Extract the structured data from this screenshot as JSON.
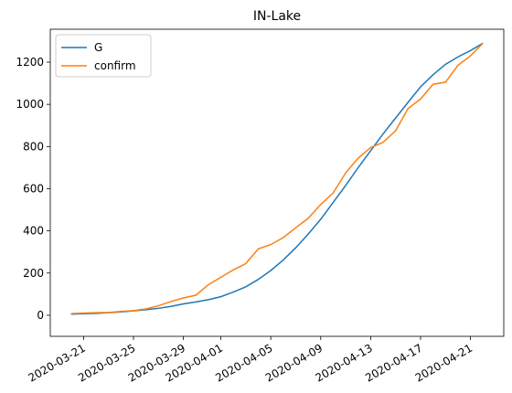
{
  "chart_data": {
    "type": "line",
    "title": "IN-Lake",
    "x": [
      "2020-03-20",
      "2020-03-21",
      "2020-03-22",
      "2020-03-23",
      "2020-03-24",
      "2020-03-25",
      "2020-03-26",
      "2020-03-27",
      "2020-03-28",
      "2020-03-29",
      "2020-03-30",
      "2020-03-31",
      "2020-04-01",
      "2020-04-02",
      "2020-04-03",
      "2020-04-04",
      "2020-04-05",
      "2020-04-06",
      "2020-04-07",
      "2020-04-08",
      "2020-04-09",
      "2020-04-10",
      "2020-04-11",
      "2020-04-12",
      "2020-04-13",
      "2020-04-14",
      "2020-04-15",
      "2020-04-16",
      "2020-04-17",
      "2020-04-18",
      "2020-04-19",
      "2020-04-20",
      "2020-04-21",
      "2020-04-22"
    ],
    "series": [
      {
        "name": "G",
        "color": "#1f77b4",
        "values": [
          5,
          7,
          9,
          12,
          16,
          21,
          26,
          33,
          42,
          54,
          63,
          74,
          88,
          110,
          135,
          170,
          212,
          262,
          320,
          385,
          455,
          535,
          615,
          700,
          780,
          860,
          935,
          1010,
          1083,
          1140,
          1190,
          1225,
          1255,
          1290
        ]
      },
      {
        "name": "confirm",
        "color": "#ff7f0e",
        "values": [
          8,
          10,
          12,
          13,
          18,
          22,
          30,
          45,
          65,
          82,
          95,
          145,
          180,
          215,
          245,
          315,
          335,
          368,
          415,
          460,
          525,
          580,
          675,
          745,
          795,
          820,
          875,
          980,
          1025,
          1095,
          1105,
          1185,
          1230,
          1290
        ]
      }
    ],
    "xlim": [
      "2020-03-18T08:00",
      "2020-04-23T16:00"
    ],
    "xticks": [
      "2020-03-21",
      "2020-03-25",
      "2020-03-29",
      "2020-04-01",
      "2020-04-05",
      "2020-04-09",
      "2020-04-13",
      "2020-04-17",
      "2020-04-21"
    ],
    "ylim": [
      -100,
      1356
    ],
    "yticks": [
      0,
      200,
      400,
      600,
      800,
      1000,
      1200
    ],
    "grid": false,
    "legend": "upper left"
  }
}
